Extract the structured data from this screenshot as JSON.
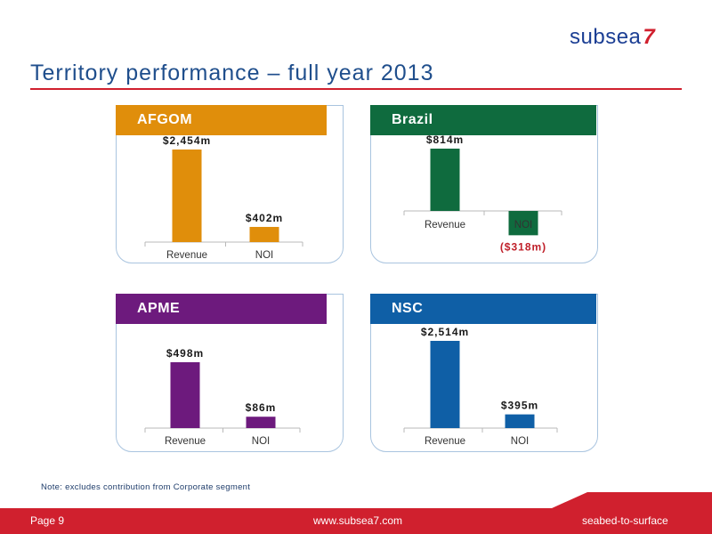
{
  "brand": {
    "logo_text": "subsea",
    "logo_number": "7"
  },
  "title": "Territory performance – full year 2013",
  "colors": {
    "afgom": "#e08e0b",
    "brazil": "#0f6b3e",
    "apme": "#6d1a7d",
    "nsc": "#0f5fa6",
    "accent_red": "#d0202e"
  },
  "chart_data": [
    {
      "type": "bar",
      "title": "AFGOM",
      "categories": [
        "Revenue",
        "NOI"
      ],
      "values": [
        2454,
        402
      ],
      "data_labels": [
        "$2,454m",
        "$402m"
      ],
      "unit": "$m",
      "ylim": [
        0,
        2454
      ]
    },
    {
      "type": "bar",
      "title": "Brazil",
      "categories": [
        "Revenue",
        "NOI"
      ],
      "values": [
        814,
        -318
      ],
      "data_labels": [
        "$814m",
        "($318m)"
      ],
      "unit": "$m",
      "ylim": [
        -318,
        814
      ]
    },
    {
      "type": "bar",
      "title": "APME",
      "categories": [
        "Revenue",
        "NOI"
      ],
      "values": [
        498,
        86
      ],
      "data_labels": [
        "$498m",
        "$86m"
      ],
      "unit": "$m",
      "ylim": [
        0,
        498
      ]
    },
    {
      "type": "bar",
      "title": "NSC",
      "categories": [
        "Revenue",
        "NOI"
      ],
      "values": [
        2514,
        395
      ],
      "data_labels": [
        "$2,514m",
        "$395m"
      ],
      "unit": "$m",
      "ylim": [
        0,
        2514
      ]
    }
  ],
  "note": "Note: excludes contribution from Corporate segment",
  "footer": {
    "page_label": "Page 9",
    "url": "www.subsea7.com",
    "tagline": "seabed-to-surface"
  }
}
